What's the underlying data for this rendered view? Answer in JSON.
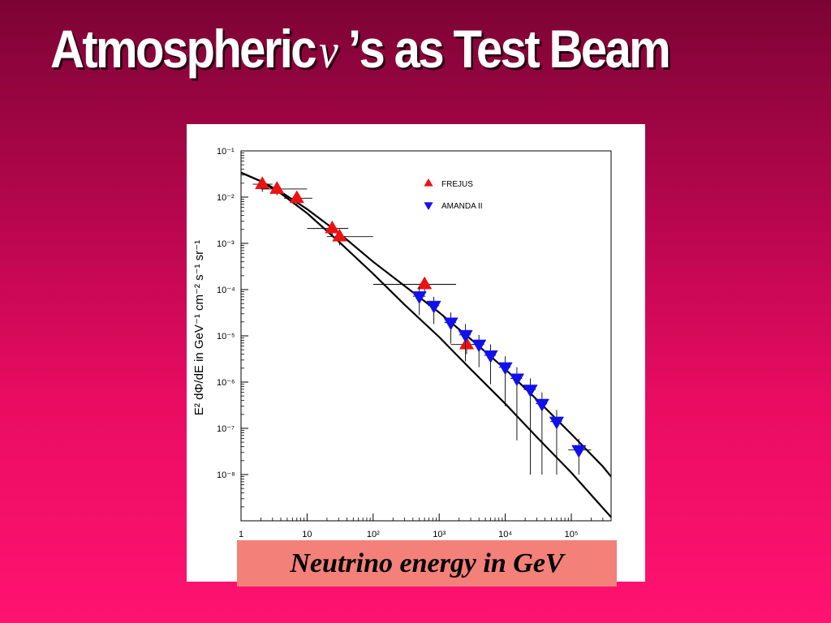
{
  "slide": {
    "title_before": "Atmospheric",
    "title_symbol": "ν",
    "title_after": "’s as Test Beam",
    "caption": "Neutrino energy in GeV"
  },
  "colors": {
    "frejus": "#ee1111",
    "amanda": "#1111ee"
  },
  "chart_data": {
    "type": "scatter",
    "x_scale": "log",
    "y_scale": "log",
    "xlim": [
      1,
      400000
    ],
    "ylim": [
      1e-09,
      0.1
    ],
    "ylabel": "E² dΦ/dE in GeV⁻¹ cm⁻² s⁻¹ sr⁻¹",
    "x_ticks": [
      {
        "value": 1,
        "label": "1"
      },
      {
        "value": 10,
        "label": "10"
      },
      {
        "value": 100,
        "label": "10²"
      },
      {
        "value": 1000,
        "label": "10³"
      },
      {
        "value": 10000,
        "label": "10⁴"
      },
      {
        "value": 100000,
        "label": "10⁵"
      }
    ],
    "y_ticks": [
      {
        "value": 0.1,
        "label": "10⁻¹"
      },
      {
        "value": 0.01,
        "label": "10⁻²"
      },
      {
        "value": 0.001,
        "label": "10⁻³"
      },
      {
        "value": 0.0001,
        "label": "10⁻⁴"
      },
      {
        "value": 1e-05,
        "label": "10⁻⁵"
      },
      {
        "value": 1e-06,
        "label": "10⁻⁶"
      },
      {
        "value": 1e-07,
        "label": "10⁻⁷"
      },
      {
        "value": 1e-08,
        "label": "10⁻⁸"
      }
    ],
    "legend": [
      {
        "name": "FREJUS",
        "marker": "triangle-up",
        "color": "#ee1111"
      },
      {
        "name": "AMANDA II",
        "marker": "triangle-down",
        "color": "#1111ee"
      }
    ],
    "series": [
      {
        "name": "FREJUS",
        "marker": "triangle-up",
        "points": [
          {
            "x": 2.1,
            "y": 0.019,
            "xerr": [
              1.5,
              3.0
            ],
            "yerr": [
              0.013,
              0.025
            ]
          },
          {
            "x": 3.5,
            "y": 0.015,
            "xerr": [
              2.0,
              10.0
            ],
            "yerr": [
              0.011,
              0.02
            ]
          },
          {
            "x": 7.0,
            "y": 0.0095,
            "xerr": [
              4.5,
              12.0
            ],
            "yerr": [
              0.007,
              0.013
            ]
          },
          {
            "x": 24,
            "y": 0.0021,
            "xerr": [
              10,
              42
            ],
            "yerr": [
              0.0015,
              0.003
            ]
          },
          {
            "x": 31,
            "y": 0.0014,
            "xerr": [
              20,
              100
            ],
            "yerr": [
              0.0009,
              0.002
            ]
          },
          {
            "x": 600,
            "y": 0.00013,
            "xerr": [
              100,
              1800
            ],
            "yerr": [
              9e-05,
              0.00018
            ]
          },
          {
            "x": 2600,
            "y": 6.5e-06,
            "xerr": [
              1500,
              4000
            ],
            "yerr": [
              4e-06,
              1e-05
            ]
          }
        ]
      },
      {
        "name": "AMANDA II",
        "marker": "triangle-down",
        "points": [
          {
            "x": 500,
            "y": 7.2e-05,
            "xerr": [
              400,
              620
            ],
            "yerr": [
              2.8e-05,
              0.000115
            ]
          },
          {
            "x": 830,
            "y": 4.5e-05,
            "xerr": [
              680,
              1000
            ],
            "yerr": [
              1.8e-05,
              7e-05
            ]
          },
          {
            "x": 1500,
            "y": 1.95e-05,
            "xerr": [
              1200,
              1800
            ],
            "yerr": [
              6.8e-06,
              3.2e-05
            ]
          },
          {
            "x": 2500,
            "y": 1.05e-05,
            "xerr": [
              2000,
              3000
            ],
            "yerr": [
              2.8e-06,
              1.8e-05
            ]
          },
          {
            "x": 4000,
            "y": 6.5e-06,
            "xerr": [
              3200,
              4800
            ],
            "yerr": [
              2.1e-06,
              1.05e-05
            ]
          },
          {
            "x": 6000,
            "y": 3.8e-06,
            "xerr": [
              4800,
              7200
            ],
            "yerr": [
              9e-07,
              6.5e-06
            ]
          },
          {
            "x": 10000,
            "y": 2.1e-06,
            "xerr": [
              8000,
              12000
            ],
            "yerr": [
              3e-07,
              3.6e-06
            ]
          },
          {
            "x": 15000,
            "y": 1.2e-06,
            "xerr": [
              12000,
              18000
            ],
            "yerr": [
              5.5e-08,
              2.1e-06
            ]
          },
          {
            "x": 24000,
            "y": 6.9e-07,
            "xerr": [
              19000,
              29000
            ],
            "yerr": [
              1e-08,
              1.2e-06
            ]
          },
          {
            "x": 36000,
            "y": 3.4e-07,
            "xerr": [
              29000,
              43000
            ],
            "yerr": [
              1e-08,
              6e-07
            ]
          },
          {
            "x": 60000,
            "y": 1.4e-07,
            "xerr": [
              48000,
              72000
            ],
            "yerr": [
              1e-08,
              2.5e-07
            ]
          },
          {
            "x": 130000,
            "y": 3.4e-08,
            "xerr": [
              90000,
              200000
            ],
            "yerr": [
              1e-08,
              6e-08
            ]
          }
        ]
      },
      {
        "name": "",
        "line": true,
        "points": [
          {
            "x": 1,
            "y": 0.034
          },
          {
            "x": 2,
            "y": 0.022
          },
          {
            "x": 4,
            "y": 0.013
          },
          {
            "x": 10,
            "y": 0.0055
          },
          {
            "x": 30,
            "y": 0.0017
          },
          {
            "x": 100,
            "y": 0.0004
          },
          {
            "x": 300,
            "y": 0.00012
          },
          {
            "x": 1000,
            "y": 3.2e-05
          },
          {
            "x": 3000,
            "y": 8.5e-06
          },
          {
            "x": 10000,
            "y": 1.9e-06
          },
          {
            "x": 30000,
            "y": 4.2e-07
          },
          {
            "x": 100000,
            "y": 7.5e-08
          },
          {
            "x": 300000,
            "y": 1.5e-08
          },
          {
            "x": 400000,
            "y": 9e-09
          }
        ]
      },
      {
        "name": "",
        "line": true,
        "points": [
          {
            "x": 1,
            "y": 0.034
          },
          {
            "x": 2,
            "y": 0.022
          },
          {
            "x": 4,
            "y": 0.012
          },
          {
            "x": 10,
            "y": 0.0045
          },
          {
            "x": 30,
            "y": 0.0011
          },
          {
            "x": 100,
            "y": 0.00022
          },
          {
            "x": 300,
            "y": 4.7e-05
          },
          {
            "x": 1000,
            "y": 9.4e-06
          },
          {
            "x": 3000,
            "y": 1.9e-06
          },
          {
            "x": 10000,
            "y": 3.4e-07
          },
          {
            "x": 30000,
            "y": 6.5e-08
          },
          {
            "x": 100000,
            "y": 1.1e-08
          },
          {
            "x": 300000,
            "y": 1.9e-09
          },
          {
            "x": 400000,
            "y": 1.2e-09
          }
        ]
      }
    ]
  }
}
